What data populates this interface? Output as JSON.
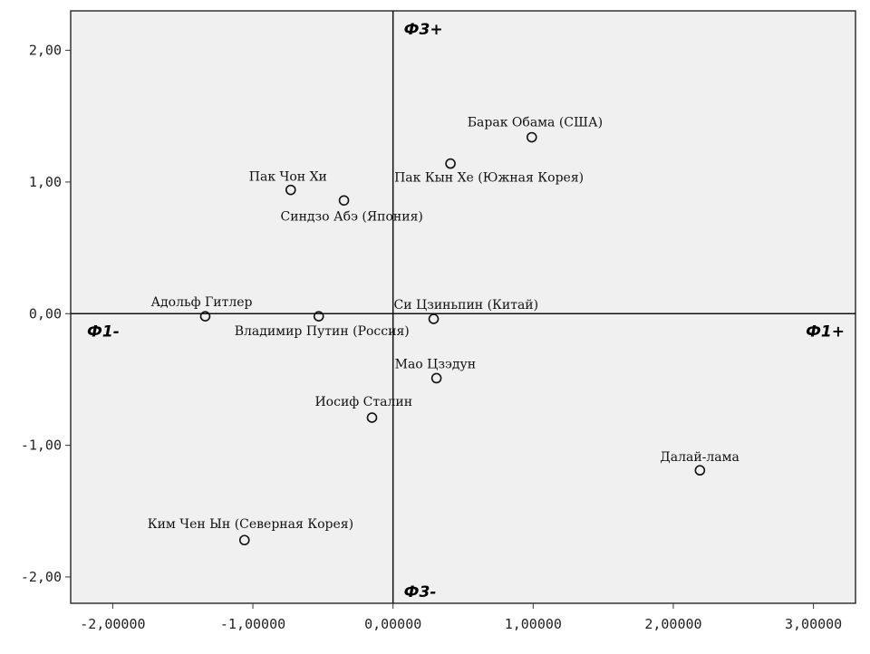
{
  "chart_data": {
    "type": "scatter",
    "title": "",
    "xlabel": "",
    "ylabel": "",
    "xlim": [
      -2.3,
      3.3
    ],
    "ylim": [
      -2.2,
      2.3
    ],
    "grid": false,
    "x_ticks": [
      -2,
      -1,
      0,
      1,
      2,
      3
    ],
    "x_tick_labels": [
      "-2,00000",
      "-1,00000",
      "0,00000",
      "1,00000",
      "2,00000",
      "3,00000"
    ],
    "y_ticks": [
      2,
      1,
      0,
      -1,
      -2
    ],
    "y_tick_labels": [
      "2,00",
      "1,00",
      "0,00",
      "-1,00",
      "-2,00"
    ],
    "reference_lines": {
      "x": 0,
      "y": 0
    },
    "axis_annotations": {
      "top": "Ф3+",
      "bottom": "Ф3-",
      "left": "Ф1-",
      "right": "Ф1+"
    },
    "points": [
      {
        "label": "Барак Обама (США)",
        "x": 0.99,
        "y": 1.34,
        "label_pos": "above-left"
      },
      {
        "label": "Пак Кын Хе (Южная Корея)",
        "x": 0.41,
        "y": 1.14,
        "label_pos": "below-left"
      },
      {
        "label": "Пак Чон Хи",
        "x": -0.73,
        "y": 0.94,
        "label_pos": "above-left"
      },
      {
        "label": "Синдзо Абэ (Япония)",
        "x": -0.35,
        "y": 0.86,
        "label_pos": "below-left"
      },
      {
        "label": "Адольф Гитлер",
        "x": -1.34,
        "y": -0.02,
        "label_pos": "above-left"
      },
      {
        "label": "Владимир Путин (Россия)",
        "x": -0.53,
        "y": -0.02,
        "label_pos": "below-left"
      },
      {
        "label": "Си Цзиньпин (Китай)",
        "x": 0.29,
        "y": -0.04,
        "label_pos": "above-left"
      },
      {
        "label": "Мао Цзэдун",
        "x": 0.31,
        "y": -0.49,
        "label_pos": "above-left"
      },
      {
        "label": "Иосиф Сталин",
        "x": -0.15,
        "y": -0.79,
        "label_pos": "above-left"
      },
      {
        "label": "Далай-лама",
        "x": 2.19,
        "y": -1.19,
        "label_pos": "above-left"
      },
      {
        "label": "Ким Чен Ын (Северная Корея)",
        "x": -1.06,
        "y": -1.72,
        "label_pos": "above-left"
      }
    ]
  }
}
